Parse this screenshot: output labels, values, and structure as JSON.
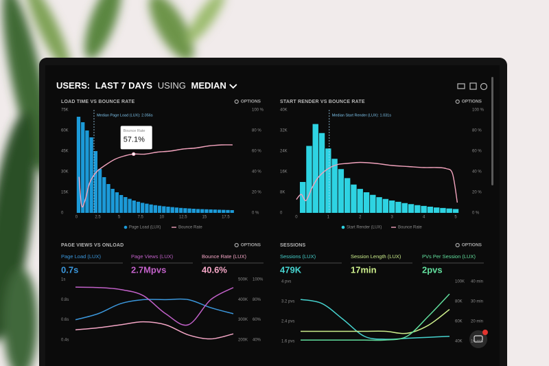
{
  "header": {
    "title": [
      "USERS:",
      "LAST 7 DAYS",
      "USING",
      "MEDIAN"
    ]
  },
  "panels": [
    {
      "title": "LOAD TIME VS BOUNCE RATE",
      "options": "OPTIONS",
      "chart": {
        "type": "histogram",
        "name": "Page Load (LUX)",
        "color": "#1c9ad8",
        "bins": [
          0,
          0.5,
          1,
          1.5,
          2,
          2.5,
          3,
          3.5,
          4,
          4.5,
          5,
          5.5,
          6,
          6.5,
          7,
          7.5,
          8,
          8.5,
          9,
          9.5,
          10,
          10.5,
          11,
          11.5,
          12,
          12.5,
          13,
          13.5,
          14,
          14.5,
          15,
          15.5,
          16,
          16.5,
          17,
          17.5,
          18,
          18.5
        ],
        "counts": [
          70000,
          66000,
          60000,
          55000,
          45000,
          32000,
          26000,
          21000,
          17500,
          15000,
          13000,
          11500,
          10200,
          9000,
          8100,
          7300,
          6700,
          6100,
          5600,
          5200,
          4800,
          4500,
          4200,
          3900,
          3600,
          3400,
          3200,
          3000,
          2800,
          2700,
          2600,
          2500,
          2400,
          2300,
          2200,
          2100,
          2000
        ],
        "line": {
          "name": "Bounce Rate",
          "color": "#f2a3bd",
          "axis": "y2",
          "x": [
            0.3,
            0.6,
            1,
            1.5,
            2,
            2.5,
            3.5,
            4.5,
            5.5,
            6.7,
            8,
            9.5,
            11,
            12.5,
            14,
            15.5,
            17,
            18.3
          ],
          "values": [
            35,
            7,
            12,
            28,
            36,
            41,
            47,
            52,
            55,
            57.1,
            57,
            59,
            60,
            62,
            63,
            65,
            66,
            66
          ]
        },
        "xlim": [
          -1,
          20
        ],
        "xticks": [
          0,
          2.5,
          5,
          7.5,
          10,
          12.5,
          15,
          17.5
        ],
        "ylim": [
          0,
          75000
        ],
        "yticks": [
          {
            "value": 75000,
            "label": "75K"
          },
          {
            "value": 60000,
            "label": "60K"
          },
          {
            "value": 45000,
            "label": "45K"
          },
          {
            "value": 30000,
            "label": "30K"
          },
          {
            "value": 15000,
            "label": "15K"
          },
          0
        ],
        "y2lim": [
          0,
          100
        ],
        "y2ticks": [
          {
            "value": 100,
            "label": "100 %"
          },
          {
            "value": 80,
            "label": "80 %"
          },
          {
            "value": 60,
            "label": "60 %"
          },
          {
            "value": 40,
            "label": "40 %"
          },
          {
            "value": 20,
            "label": "20 %"
          },
          {
            "value": 0,
            "label": "0 %"
          }
        ],
        "median": {
          "value": 2.056,
          "label": "Median Page Load (LUX): 2.056s"
        },
        "tooltip": {
          "title": "Bounce Rate",
          "x": 6.7,
          "value": 57.1,
          "label": "57.1%"
        }
      }
    },
    {
      "title": "START RENDER VS BOUNCE RATE",
      "options": "OPTIONS",
      "chart": {
        "type": "histogram",
        "name": "Start Render (LUX)",
        "color": "#2ed3e2",
        "bins": [
          0.1,
          0.3,
          0.5,
          0.7,
          0.9,
          1.1,
          1.3,
          1.5,
          1.7,
          1.9,
          2.1,
          2.3,
          2.5,
          2.7,
          2.9,
          3.1,
          3.3,
          3.5,
          3.7,
          3.9,
          4.1,
          4.3,
          4.5,
          4.7,
          4.9,
          5.1
        ],
        "counts": [
          12000,
          26000,
          34500,
          31000,
          25000,
          21000,
          17000,
          13500,
          11000,
          9300,
          8000,
          7000,
          6100,
          5400,
          4800,
          4300,
          3800,
          3400,
          3000,
          2700,
          2400,
          2100,
          1900,
          1700,
          1500
        ],
        "line": {
          "name": "Bounce Rate",
          "color": "#f2a3bd",
          "axis": "y2",
          "x": [
            0,
            0.15,
            0.3,
            0.5,
            0.7,
            1,
            1.3,
            1.6,
            2,
            2.5,
            3,
            3.5,
            4,
            4.4,
            4.7,
            4.9,
            5.05
          ],
          "values": [
            13,
            18,
            12,
            25,
            35,
            43,
            47,
            48,
            49,
            48,
            46,
            45,
            44,
            44,
            43,
            38,
            10
          ]
        },
        "xlim": [
          -0.3,
          5.3
        ],
        "xticks": [
          0,
          1,
          2,
          3,
          4,
          5
        ],
        "ylim": [
          0,
          40000
        ],
        "yticks": [
          {
            "value": 40000,
            "label": "40K"
          },
          {
            "value": 32000,
            "label": "32K"
          },
          {
            "value": 24000,
            "label": "24K"
          },
          {
            "value": 16000,
            "label": "16K"
          },
          {
            "value": 8000,
            "label": "8K"
          },
          0
        ],
        "y2lim": [
          0,
          100
        ],
        "y2ticks": [
          {
            "value": 100,
            "label": "100 %"
          },
          {
            "value": 80,
            "label": "80 %"
          },
          {
            "value": 60,
            "label": "60 %"
          },
          {
            "value": 40,
            "label": "40 %"
          },
          {
            "value": 20,
            "label": "20 %"
          },
          {
            "value": 0,
            "label": "0 %"
          }
        ],
        "median": {
          "value": 1.031,
          "label": "Median Start Render (LUX): 1.031s"
        }
      }
    },
    {
      "title": "PAGE VIEWS VS ONLOAD",
      "options": "OPTIONS",
      "stats": [
        {
          "label": "Page Load (LUX)",
          "value": "0.7s"
        },
        {
          "label": "Page Views (LUX)",
          "value": "2.7Mpvs"
        },
        {
          "label": "Bounce Rate (LUX)",
          "value": "40.6%"
        }
      ],
      "chart": {
        "type": "line",
        "series": [
          {
            "color": "#3b97dc",
            "axis": "y",
            "values": [
              0.6,
              0.66,
              0.76,
              0.8,
              0.8,
              0.8,
              0.72,
              0.66
            ]
          },
          {
            "color": "#c261c9",
            "axis": "y2",
            "values": [
              462000,
              460000,
              450000,
              420000,
              330000,
              275000,
              400000,
              460000
            ]
          },
          {
            "color": "#f4a6c6",
            "axis": "y3",
            "values": [
              50,
              52,
              55,
              58,
              55,
              45,
              41,
              46
            ]
          }
        ],
        "ylim": [
          0.4,
          1
        ],
        "yticks": [
          {
            "value": 1,
            "label": "1s"
          },
          {
            "value": 0.8,
            "label": "0.8s"
          },
          {
            "value": 0.6,
            "label": "0.6s"
          },
          {
            "value": 0.4,
            "label": "0.4s"
          }
        ],
        "y2lim": [
          200000,
          500000
        ],
        "y2ticks": [
          {
            "value": 500000,
            "label": "500K"
          },
          {
            "value": 400000,
            "label": "400K"
          },
          {
            "value": 300000,
            "label": "300K"
          },
          {
            "value": 200000,
            "label": "200K"
          }
        ],
        "y3lim": [
          40,
          100
        ],
        "y3ticks": [
          {
            "value": 100,
            "label": "100%"
          },
          {
            "value": 80,
            "label": "80%"
          },
          {
            "value": 60,
            "label": "60%"
          },
          {
            "value": 40,
            "label": "40%"
          }
        ]
      }
    },
    {
      "title": "SESSIONS",
      "options": "OPTIONS",
      "stats": [
        {
          "label": "Sessions (LUX)",
          "value": "479K"
        },
        {
          "label": "Session Length (LUX)",
          "value": "17min"
        },
        {
          "label": "PVs Per Session (LUX)",
          "value": "2pvs"
        }
      ],
      "chart": {
        "type": "line",
        "series": [
          {
            "color": "#46d3cf",
            "axis": "y2",
            "values": [
              82000,
              78000,
              62000,
              45000,
              42000,
              43000,
              44000,
              45000
            ]
          },
          {
            "color": "#cdef8c",
            "axis": "y3",
            "values": [
              15,
              15,
              15,
              15,
              15,
              14,
              18,
              26
            ]
          },
          {
            "color": "#62e09e",
            "axis": "y",
            "values": [
              1.65,
              1.65,
              1.65,
              1.65,
              1.65,
              1.8,
              2.6,
              3.5
            ]
          }
        ],
        "ylim": [
          1.6,
          4
        ],
        "yticks": [
          {
            "value": 4,
            "label": "4 pvs"
          },
          {
            "value": 3.2,
            "label": "3.2 pvs"
          },
          {
            "value": 2.4,
            "label": "2.4 pvs"
          },
          {
            "value": 1.6,
            "label": "1.6 pvs"
          }
        ],
        "y2lim": [
          40000,
          100000
        ],
        "y2ticks": [
          {
            "value": 100000,
            "label": "100K"
          },
          {
            "value": 80000,
            "label": "80K"
          },
          {
            "value": 60000,
            "label": "60K"
          },
          {
            "value": 40000,
            "label": "40K"
          }
        ],
        "y3lim": [
          10,
          40
        ],
        "y3ticks": [
          {
            "value": 40,
            "label": "40 min"
          },
          {
            "value": 30,
            "label": "30 min"
          },
          {
            "value": 20,
            "label": "20 min"
          },
          {
            "value": 10,
            "label": "10 min"
          }
        ]
      }
    }
  ]
}
